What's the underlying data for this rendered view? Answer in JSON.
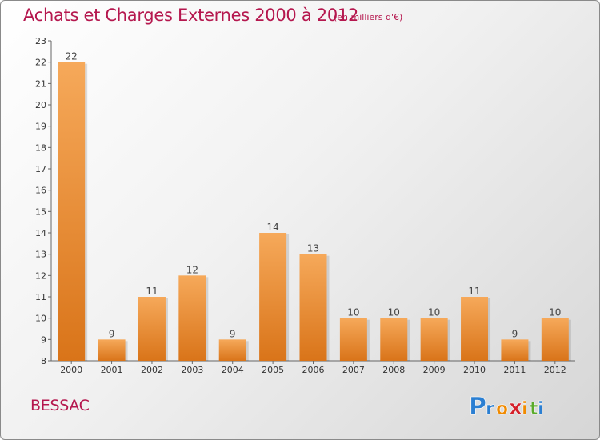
{
  "title": "Achats et Charges Externes 2000 à 2012",
  "subtitle": "(en milliers d'€)",
  "place": "BESSAC",
  "logo": {
    "letters": [
      "P",
      "r",
      "o",
      "x",
      "i",
      "t",
      "i"
    ],
    "colors": [
      "#2b7fd2",
      "#2b7fd2",
      "#f08a00",
      "#d4202a",
      "#f08a00",
      "#5aaa2a",
      "#2b7fd2"
    ]
  },
  "colors": {
    "bar_light": "#f6a95a",
    "bar_dark": "#d97419",
    "accent": "#b5174e"
  },
  "chart_data": {
    "type": "bar",
    "categories": [
      "2000",
      "2001",
      "2002",
      "2003",
      "2004",
      "2005",
      "2006",
      "2007",
      "2008",
      "2009",
      "2010",
      "2011",
      "2012"
    ],
    "values": [
      22,
      9,
      11,
      12,
      9,
      14,
      13,
      10,
      10,
      10,
      11,
      9,
      10
    ],
    "data_labels": [
      "22",
      "9",
      "11",
      "12",
      "9",
      "14",
      "13",
      "10",
      "10",
      "10",
      "11",
      "9",
      "10"
    ],
    "ylim": [
      8,
      23
    ],
    "yticks": [
      8,
      9,
      10,
      11,
      12,
      13,
      14,
      15,
      16,
      17,
      18,
      19,
      20,
      21,
      22,
      23
    ],
    "ytick_labels": [
      "8",
      "9",
      "10",
      "11",
      "12",
      "13",
      "14",
      "15",
      "16",
      "17",
      "18",
      "19",
      "20",
      "21",
      "22",
      "23"
    ],
    "grid": false
  }
}
